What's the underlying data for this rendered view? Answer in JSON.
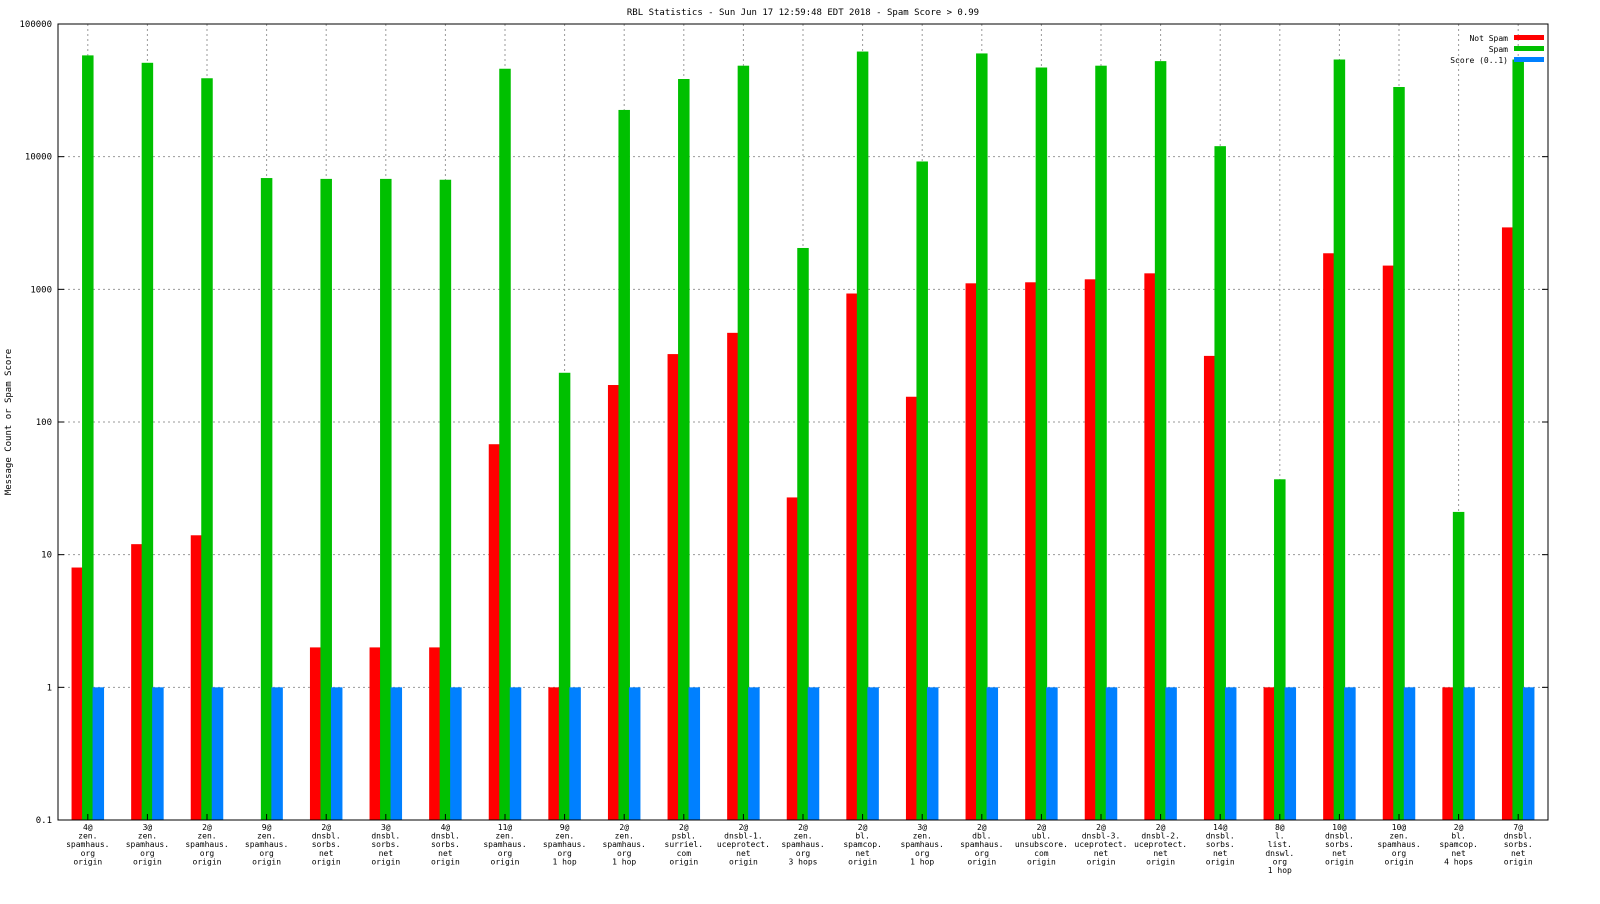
{
  "chart_data": {
    "type": "bar",
    "title": "RBL Statistics - Sun Jun 17 12:59:48 EDT 2018 - Spam Score > 0.99",
    "ylabel": "Message Count or Spam Score",
    "xlabel": "",
    "yscale": "log",
    "ylim": [
      0.1,
      100000
    ],
    "yticks": [
      "100000",
      "10000",
      "1000",
      "100",
      "10",
      "1",
      "0.1"
    ],
    "grid": true,
    "legend_position": "top-right",
    "categories": [
      [
        "4@",
        "zen.",
        "spamhaus.",
        "org",
        "origin"
      ],
      [
        "3@",
        "zen.",
        "spamhaus.",
        "org",
        "origin"
      ],
      [
        "2@",
        "zen.",
        "spamhaus.",
        "org",
        "origin"
      ],
      [
        "9@",
        "zen.",
        "spamhaus.",
        "org",
        "origin"
      ],
      [
        "2@",
        "dnsbl.",
        "sorbs.",
        "net",
        "origin"
      ],
      [
        "3@",
        "dnsbl.",
        "sorbs.",
        "net",
        "origin"
      ],
      [
        "4@",
        "dnsbl.",
        "sorbs.",
        "net",
        "origin"
      ],
      [
        "11@",
        "zen.",
        "spamhaus.",
        "org",
        "origin"
      ],
      [
        "9@",
        "zen.",
        "spamhaus.",
        "org",
        "1 hop"
      ],
      [
        "2@",
        "zen.",
        "spamhaus.",
        "org",
        "1 hop"
      ],
      [
        "2@",
        "psbl.",
        "surriel.",
        "com",
        "origin"
      ],
      [
        "2@",
        "dnsbl-1.",
        "uceprotect.",
        "net",
        "origin"
      ],
      [
        "2@",
        "zen.",
        "spamhaus.",
        "org",
        "3 hops"
      ],
      [
        "2@",
        "bl.",
        "spamcop.",
        "net",
        "origin"
      ],
      [
        "3@",
        "zen.",
        "spamhaus.",
        "org",
        "1 hop"
      ],
      [
        "2@",
        "dbl.",
        "spamhaus.",
        "org",
        "origin"
      ],
      [
        "2@",
        "ubl.",
        "unsubscore.",
        "com",
        "origin"
      ],
      [
        "2@",
        "dnsbl-3.",
        "uceprotect.",
        "net",
        "origin"
      ],
      [
        "2@",
        "dnsbl-2.",
        "uceprotect.",
        "net",
        "origin"
      ],
      [
        "14@",
        "dnsbl.",
        "sorbs.",
        "net",
        "origin"
      ],
      [
        "8@",
        "l.",
        "list.",
        "dnswl.",
        "org",
        "1 hop"
      ],
      [
        "10@",
        "dnsbl.",
        "sorbs.",
        "net",
        "origin"
      ],
      [
        "10@",
        "zen.",
        "spamhaus.",
        "org",
        "origin"
      ],
      [
        "2@",
        "bl.",
        "spamcop.",
        "net",
        "4 hops"
      ],
      [
        "7@",
        "dnsbl.",
        "sorbs.",
        "net",
        "origin"
      ]
    ],
    "series": [
      {
        "name": "Not Spam",
        "color": "#ff0000",
        "values": [
          8,
          12,
          14,
          null,
          2,
          2,
          2,
          68,
          1,
          190,
          325,
          470,
          27,
          930,
          155,
          1110,
          1130,
          1190,
          1320,
          315,
          1,
          1870,
          1510,
          1,
          2930
        ]
      },
      {
        "name": "Spam",
        "color": "#00c000",
        "values": [
          58000,
          51000,
          39000,
          6900,
          6800,
          6800,
          6700,
          46000,
          235,
          22500,
          38500,
          48500,
          2050,
          62000,
          9200,
          60000,
          47000,
          48500,
          52500,
          12000,
          37,
          54000,
          33500,
          21,
          54000
        ]
      },
      {
        "name": "Score (0..1)",
        "color": "#0080ff",
        "values": [
          1,
          1,
          1,
          1,
          1,
          1,
          1,
          1,
          1,
          1,
          1,
          1,
          1,
          1,
          1,
          1,
          1,
          1,
          1,
          1,
          1,
          1,
          1,
          1,
          1
        ]
      }
    ]
  }
}
